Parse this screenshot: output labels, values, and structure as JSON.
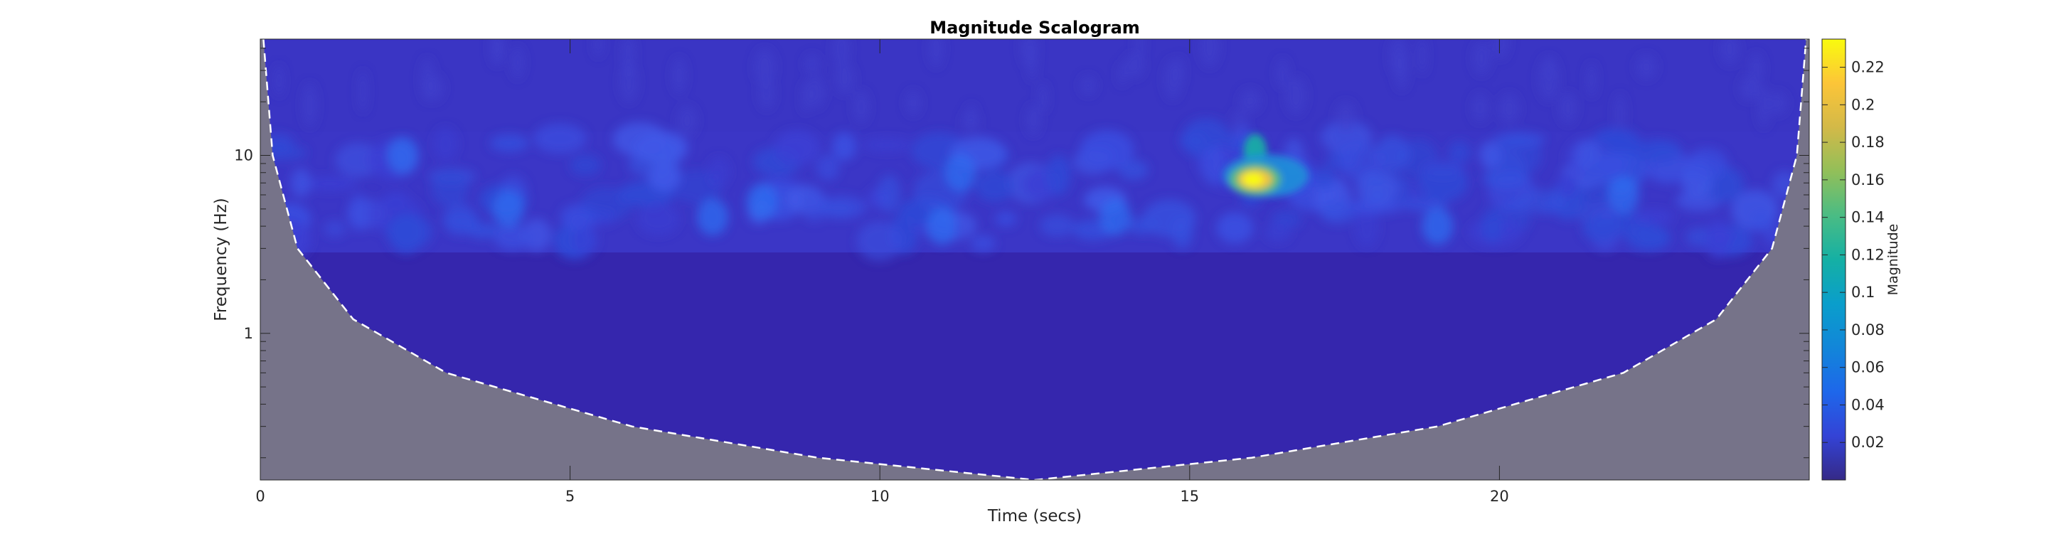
{
  "chart_data": {
    "type": "heatmap",
    "title": "Magnitude Scalogram",
    "xlabel": "Time (secs)",
    "ylabel": "Frequency (Hz)",
    "x_range": [
      0,
      25
    ],
    "y_range_hz": [
      0.15,
      45
    ],
    "y_scale": "log",
    "x_ticks": [
      {
        "value": 0,
        "label": "0"
      },
      {
        "value": 5,
        "label": "5"
      },
      {
        "value": 10,
        "label": "10"
      },
      {
        "value": 15,
        "label": "15"
      },
      {
        "value": 20,
        "label": "20"
      }
    ],
    "y_ticks": [
      {
        "value": 1,
        "label": "1"
      },
      {
        "value": 10,
        "label": "10"
      }
    ],
    "colorbar": {
      "label": "Magnitude",
      "range": [
        0,
        0.235
      ],
      "colormap": "parula",
      "ticks": [
        {
          "value": 0.02,
          "label": "0.02"
        },
        {
          "value": 0.04,
          "label": "0.04"
        },
        {
          "value": 0.06,
          "label": "0.06"
        },
        {
          "value": 0.08,
          "label": "0.08"
        },
        {
          "value": 0.1,
          "label": "0.1"
        },
        {
          "value": 0.12,
          "label": "0.12"
        },
        {
          "value": 0.14,
          "label": "0.14"
        },
        {
          "value": 0.16,
          "label": "0.16"
        },
        {
          "value": 0.18,
          "label": "0.18"
        },
        {
          "value": 0.2,
          "label": "0.2"
        },
        {
          "value": 0.22,
          "label": "0.22"
        }
      ]
    },
    "cone_of_influence": {
      "style": "white dashed line",
      "outside_shading": "#767389",
      "points": [
        [
          0.05,
          45
        ],
        [
          0.2,
          10
        ],
        [
          0.6,
          3
        ],
        [
          1.5,
          1.2
        ],
        [
          3,
          0.6
        ],
        [
          6,
          0.3
        ],
        [
          9,
          0.2
        ],
        [
          12.5,
          0.15
        ],
        [
          16,
          0.2
        ],
        [
          19,
          0.3
        ],
        [
          22,
          0.6
        ],
        [
          23.5,
          1.2
        ],
        [
          24.4,
          3
        ],
        [
          24.8,
          10
        ],
        [
          24.95,
          45
        ]
      ]
    },
    "features": [
      {
        "description_value": "peak",
        "t": 16.0,
        "f": 7,
        "magnitude": 0.23
      },
      {
        "band_hz": [
          3,
          12
        ],
        "typical_magnitude": 0.05
      },
      {
        "band_hz": [
          0.15,
          2.5
        ],
        "typical_magnitude": 0.005
      }
    ]
  },
  "colors": {
    "background": "#ffffff",
    "axis": "#262626",
    "coi_shade": "#767389",
    "coi_line": "#ffffff",
    "parula_low": "#352a87",
    "parula_high": "#f9fb0e"
  }
}
